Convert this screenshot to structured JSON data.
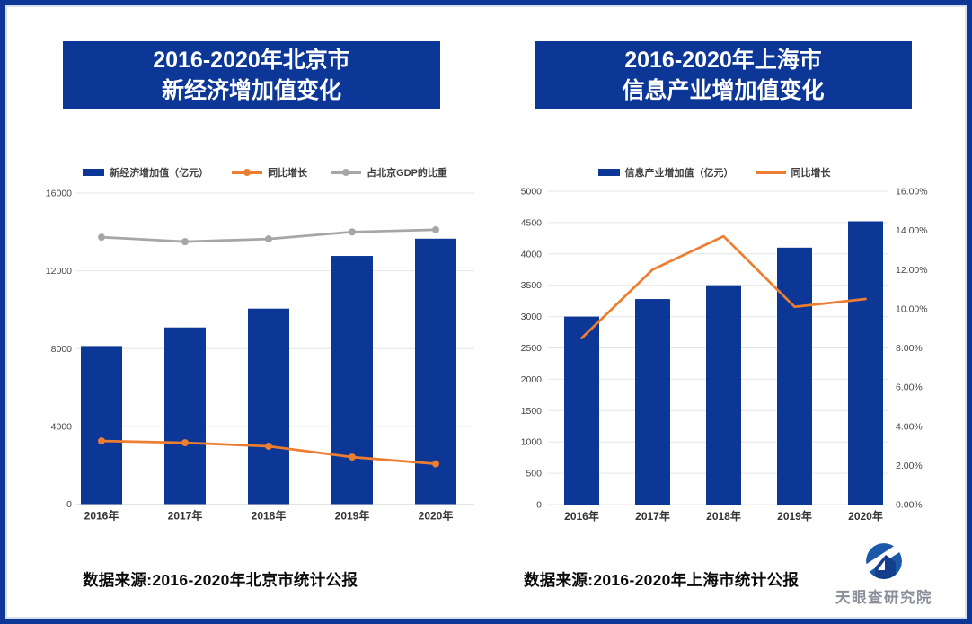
{
  "page": {
    "background": "#ffffff",
    "frame_color": "#0C3796",
    "accent_navy": "#0C3796",
    "accent_orange": "#ED7D31",
    "accent_gray": "#A6A6A6",
    "gridline_color": "#E4E4E4"
  },
  "logo": {
    "text": "天眼查研究院",
    "icon": "tianyancha-eye-logo"
  },
  "chart_data": [
    {
      "type": "bar",
      "combo": "bar+line",
      "title": [
        "2016-2020年北京市",
        "新经济增加值变化"
      ],
      "categories": [
        "2016年",
        "2017年",
        "2018年",
        "2019年",
        "2020年"
      ],
      "primary_axis": {
        "min": 0,
        "max": 16000,
        "step": 4000,
        "ticks": [
          "16000",
          "12000",
          "8000",
          "4000",
          "0"
        ],
        "grid": true
      },
      "secondary_axis": null,
      "secondary_axis_note": "line series plotted on hidden unlabeled axis; values below are positions read on the primary scale",
      "legend_position": "top",
      "series": [
        {
          "name": "新经济增加值（亿元）",
          "type": "bar",
          "color": "#0C3796",
          "scale": "primary",
          "values": [
            8132,
            9086,
            10057,
            12766,
            13654
          ]
        },
        {
          "name": "同比增长",
          "type": "line",
          "color": "#ED7D31",
          "markers": true,
          "scale": "primary",
          "values": [
            3250,
            3160,
            2980,
            2420,
            2070
          ]
        },
        {
          "name": "占北京GDP的比重",
          "type": "line",
          "color": "#A6A6A6",
          "markers": true,
          "scale": "primary",
          "values": [
            13730,
            13500,
            13640,
            14000,
            14110
          ]
        }
      ],
      "source": "数据来源:2016-2020年北京市统计公报"
    },
    {
      "type": "bar",
      "combo": "bar+line",
      "title": [
        "2016-2020年上海市",
        "信息产业增加值变化"
      ],
      "categories": [
        "2016年",
        "2017年",
        "2018年",
        "2019年",
        "2020年"
      ],
      "primary_axis": {
        "min": 0,
        "max": 5000,
        "step": 500,
        "ticks": [
          "5000",
          "4500",
          "4000",
          "3500",
          "3000",
          "2500",
          "2000",
          "1500",
          "1000",
          "500",
          "0"
        ],
        "grid": true
      },
      "secondary_axis": {
        "min": 0,
        "max": 16,
        "step": 2,
        "ticks": [
          "16.00%",
          "14.00%",
          "12.00%",
          "10.00%",
          "8.00%",
          "6.00%",
          "4.00%",
          "2.00%",
          "0.00%"
        ]
      },
      "legend_position": "top",
      "series": [
        {
          "name": "信息产业增加值（亿元）",
          "type": "bar",
          "color": "#0C3796",
          "scale": "primary",
          "values": [
            3000,
            3280,
            3500,
            4100,
            4520
          ]
        },
        {
          "name": "同比增长",
          "type": "line",
          "color": "#ED7D31",
          "markers": false,
          "scale": "secondary",
          "values": [
            8.5,
            12.0,
            13.7,
            10.1,
            10.5
          ]
        }
      ],
      "source": "数据来源:2016-2020年上海市统计公报"
    }
  ]
}
